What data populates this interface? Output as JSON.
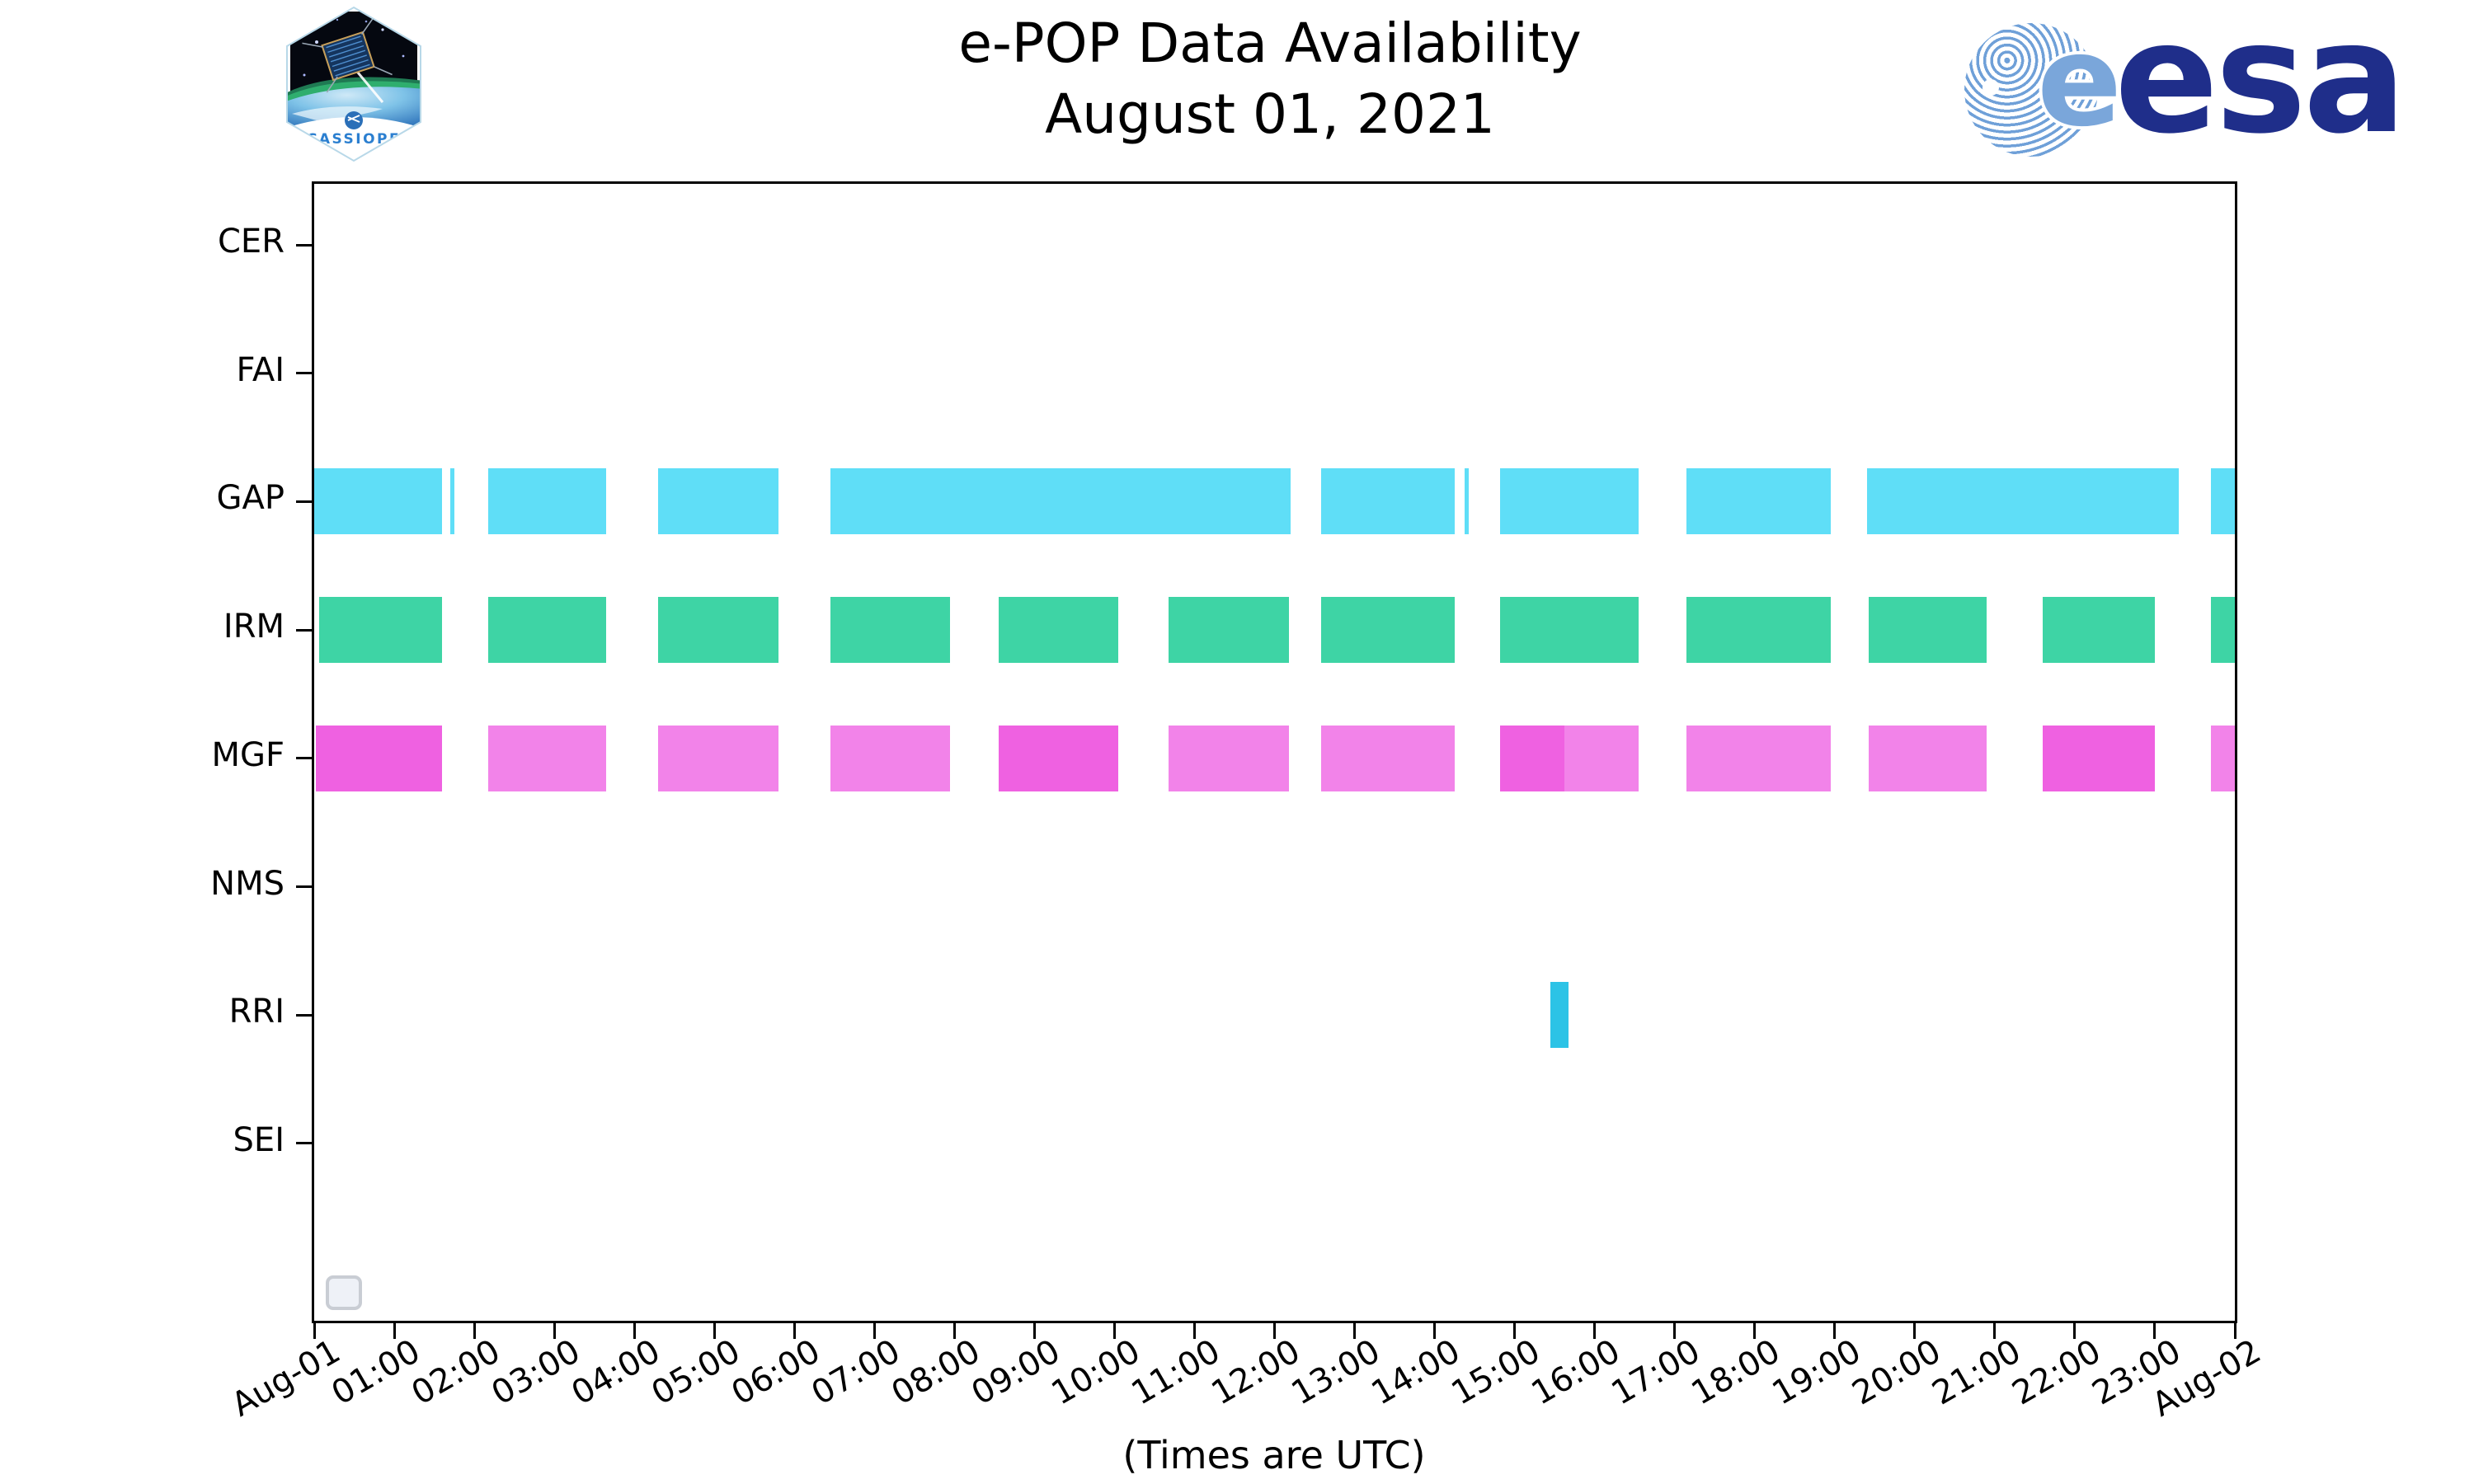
{
  "header": {
    "title_line1": "e-POP Data Availability",
    "title_line2": "August 01, 2021",
    "cassiope_label": "CASSIOPE",
    "esa_e": "e",
    "esa_wordmark": "esa"
  },
  "footer": {
    "note": "(Times are UTC)"
  },
  "colors": {
    "gap_cyan": "#5fdef7",
    "rri_cyan": "#2cc3e6",
    "irm_green": "#3ed4a5",
    "mgf_pink": "#f283e9",
    "mgf_magenta": "#ef61e1",
    "esa_navy": "#1f2e8a",
    "patch_text_blue": "#2b7fd0"
  },
  "chart_data": {
    "type": "gantt",
    "title": "e-POP Data Availability",
    "date": "August 01, 2021",
    "x_axis": {
      "unit": "hours UTC",
      "range": [
        0,
        24
      ],
      "tick_labels": [
        "Aug-01",
        "01:00",
        "02:00",
        "03:00",
        "04:00",
        "05:00",
        "06:00",
        "07:00",
        "08:00",
        "09:00",
        "10:00",
        "11:00",
        "12:00",
        "13:00",
        "14:00",
        "15:00",
        "16:00",
        "17:00",
        "18:00",
        "19:00",
        "20:00",
        "21:00",
        "22:00",
        "23:00",
        "Aug-02"
      ]
    },
    "y_axis": {
      "instruments": [
        "CER",
        "FAI",
        "GAP",
        "IRM",
        "MGF",
        "NMS",
        "RRI",
        "SEI"
      ]
    },
    "note": "(Times are UTC)",
    "series": [
      {
        "name": "CER",
        "segments": []
      },
      {
        "name": "FAI",
        "segments": []
      },
      {
        "name": "GAP",
        "segments": [
          {
            "start": 0.0,
            "end": 1.6,
            "color": "gap_cyan"
          },
          {
            "start": 1.7,
            "end": 1.75,
            "color": "gap_cyan"
          },
          {
            "start": 2.17,
            "end": 3.65,
            "color": "gap_cyan"
          },
          {
            "start": 4.3,
            "end": 5.8,
            "color": "gap_cyan"
          },
          {
            "start": 6.45,
            "end": 12.2,
            "color": "gap_cyan"
          },
          {
            "start": 12.58,
            "end": 14.25,
            "color": "gap_cyan"
          },
          {
            "start": 14.38,
            "end": 14.43,
            "color": "gap_cyan"
          },
          {
            "start": 14.82,
            "end": 16.55,
            "color": "gap_cyan"
          },
          {
            "start": 17.15,
            "end": 18.95,
            "color": "gap_cyan"
          },
          {
            "start": 19.4,
            "end": 23.3,
            "color": "gap_cyan"
          },
          {
            "start": 23.7,
            "end": 24.0,
            "color": "gap_cyan"
          }
        ]
      },
      {
        "name": "IRM",
        "segments": [
          {
            "start": 0.06,
            "end": 1.6,
            "color": "irm_green"
          },
          {
            "start": 2.17,
            "end": 3.65,
            "color": "irm_green"
          },
          {
            "start": 4.3,
            "end": 5.8,
            "color": "irm_green"
          },
          {
            "start": 6.45,
            "end": 7.95,
            "color": "irm_green"
          },
          {
            "start": 8.55,
            "end": 10.05,
            "color": "irm_green"
          },
          {
            "start": 10.68,
            "end": 12.18,
            "color": "irm_green"
          },
          {
            "start": 12.58,
            "end": 14.25,
            "color": "irm_green"
          },
          {
            "start": 14.82,
            "end": 16.55,
            "color": "irm_green"
          },
          {
            "start": 17.15,
            "end": 18.95,
            "color": "irm_green"
          },
          {
            "start": 19.42,
            "end": 20.9,
            "color": "irm_green"
          },
          {
            "start": 21.6,
            "end": 23.0,
            "color": "irm_green"
          },
          {
            "start": 23.7,
            "end": 24.0,
            "color": "irm_green"
          }
        ]
      },
      {
        "name": "MGF",
        "segments": [
          {
            "start": 0.02,
            "end": 1.6,
            "color": "mgf_magenta"
          },
          {
            "start": 2.17,
            "end": 3.65,
            "color": "mgf_pink"
          },
          {
            "start": 4.3,
            "end": 5.8,
            "color": "mgf_pink"
          },
          {
            "start": 6.45,
            "end": 7.95,
            "color": "mgf_pink"
          },
          {
            "start": 8.55,
            "end": 10.05,
            "color": "mgf_magenta"
          },
          {
            "start": 10.68,
            "end": 12.18,
            "color": "mgf_pink"
          },
          {
            "start": 12.58,
            "end": 14.25,
            "color": "mgf_pink"
          },
          {
            "start": 14.82,
            "end": 15.62,
            "color": "mgf_magenta"
          },
          {
            "start": 15.62,
            "end": 16.55,
            "color": "mgf_pink"
          },
          {
            "start": 17.15,
            "end": 18.95,
            "color": "mgf_pink"
          },
          {
            "start": 19.42,
            "end": 20.9,
            "color": "mgf_pink"
          },
          {
            "start": 21.6,
            "end": 23.0,
            "color": "mgf_magenta"
          },
          {
            "start": 23.7,
            "end": 24.0,
            "color": "mgf_pink"
          }
        ]
      },
      {
        "name": "NMS",
        "segments": []
      },
      {
        "name": "RRI",
        "segments": [
          {
            "start": 15.45,
            "end": 15.67,
            "color": "rri_cyan"
          }
        ]
      },
      {
        "name": "SEI",
        "segments": []
      }
    ]
  }
}
